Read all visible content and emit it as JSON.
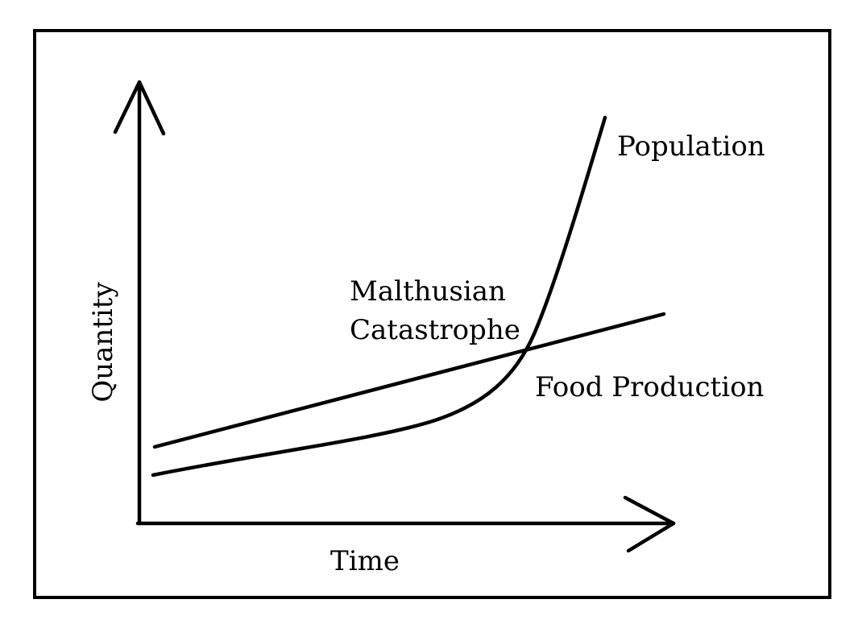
{
  "diagram": {
    "x_axis_label": "Time",
    "y_axis_label": "Quantity",
    "curves": {
      "population_label": "Population",
      "food_production_label": "Food Production"
    },
    "intersection_label_lines": [
      "Malthusian",
      "Catastrophe"
    ]
  },
  "colors": {
    "background": "#ffffff",
    "ink": "#000000"
  }
}
